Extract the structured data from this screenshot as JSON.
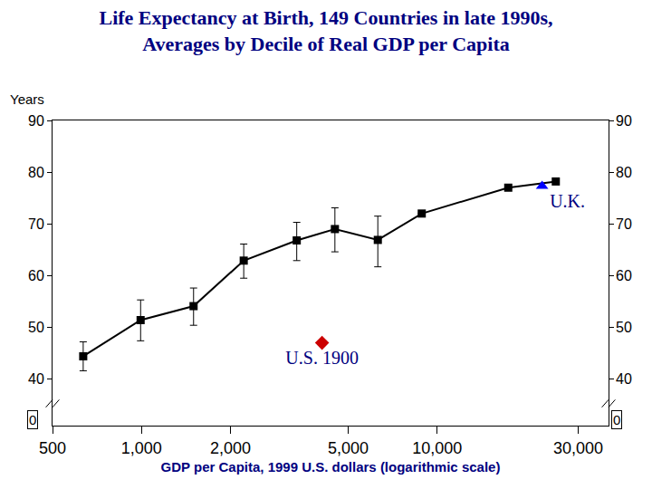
{
  "chart_data": {
    "type": "line",
    "title": [
      "Life Expectancy at Birth, 149 Countries in late 1990s,",
      "Averages by Decile of Real GDP per Capita"
    ],
    "y_label": "Years",
    "x_label": "GDP per Capita, 1999 U.S. dollars (logarithmic scale)",
    "log": "x",
    "grid": false,
    "xlim": [
      500,
      38000
    ],
    "xticks": [
      500,
      {
        "value": 1000,
        "label": "1,000"
      },
      {
        "value": 2000,
        "label": "2,000"
      },
      {
        "value": 5000,
        "label": "5,000"
      },
      {
        "value": 10000,
        "label": "10,000"
      },
      {
        "value": 30000,
        "label": "30,000"
      }
    ],
    "ylim": [
      31,
      90
    ],
    "yticks": [
      40,
      50,
      60,
      70,
      80,
      90
    ],
    "annotations": [
      "0"
    ],
    "series": [
      {
        "type": "line",
        "marker": "square",
        "color": "#000000",
        "x": [
          635,
          993,
          1500,
          2217,
          3350,
          4510,
          6300,
          8870,
          17400,
          25200
        ],
        "values": [
          44.4,
          51.4,
          54.1,
          62.9,
          66.8,
          69.0,
          66.9,
          72.0,
          77.0,
          78.2
        ],
        "error_plus": [
          2.8,
          3.9,
          3.5,
          3.2,
          3.5,
          4.1,
          4.6,
          null,
          null,
          null
        ],
        "error_minus": [
          2.8,
          4.0,
          3.7,
          3.4,
          3.9,
          4.4,
          5.2,
          null,
          null,
          null
        ]
      },
      {
        "name": "U.K.",
        "type": "scatter",
        "marker": "triangle-up",
        "color": "#0000ff",
        "x": [
          22650
        ],
        "values": [
          77.3
        ]
      },
      {
        "name": "U.S. 1900",
        "type": "scatter",
        "marker": "diamond",
        "color": "#cc0000",
        "x": [
          4080
        ],
        "values": [
          47.0
        ]
      }
    ]
  }
}
